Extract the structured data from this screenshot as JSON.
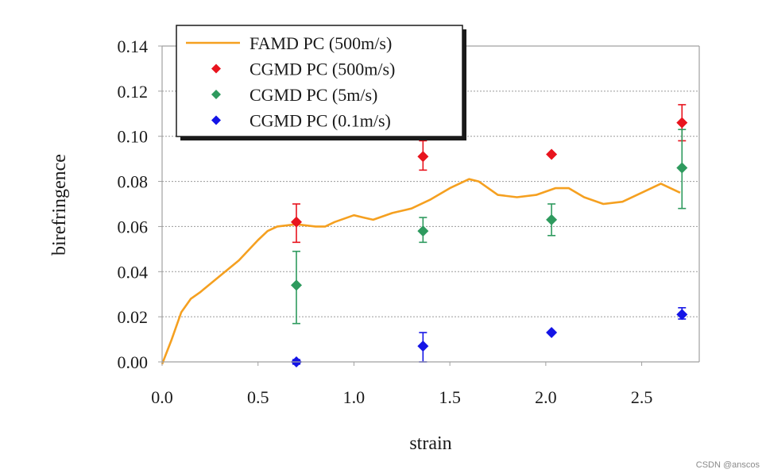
{
  "chart_data": {
    "type": "scatter",
    "title": "",
    "xlabel": "strain",
    "ylabel": "birefringence",
    "xlim": [
      0.0,
      2.8
    ],
    "ylim": [
      0.0,
      0.14
    ],
    "xticks": [
      "0.0",
      "0.5",
      "1.0",
      "1.5",
      "2.0",
      "2.5"
    ],
    "yticks": [
      "0.00",
      "0.02",
      "0.04",
      "0.06",
      "0.08",
      "0.10",
      "0.12",
      "0.14"
    ],
    "grid": "horizontal dotted",
    "legend_position": "top-left",
    "series": [
      {
        "name": "FAMD PC (500m/s)",
        "kind": "line",
        "color": "#f5a020",
        "x": [
          0.0,
          0.05,
          0.1,
          0.15,
          0.2,
          0.3,
          0.4,
          0.5,
          0.55,
          0.6,
          0.7,
          0.8,
          0.85,
          0.9,
          1.0,
          1.05,
          1.1,
          1.2,
          1.3,
          1.4,
          1.5,
          1.6,
          1.65,
          1.75,
          1.85,
          1.95,
          2.05,
          2.12,
          2.2,
          2.3,
          2.4,
          2.5,
          2.6,
          2.7
        ],
        "y": [
          -0.001,
          0.01,
          0.022,
          0.028,
          0.031,
          0.038,
          0.045,
          0.054,
          0.058,
          0.06,
          0.061,
          0.06,
          0.06,
          0.062,
          0.065,
          0.064,
          0.063,
          0.066,
          0.068,
          0.072,
          0.077,
          0.081,
          0.08,
          0.074,
          0.073,
          0.074,
          0.077,
          0.077,
          0.073,
          0.07,
          0.071,
          0.075,
          0.079,
          0.075
        ]
      },
      {
        "name": "CGMD PC (500m/s)",
        "kind": "marker",
        "color": "#e8141e",
        "points": [
          {
            "x": 0.7,
            "y": 0.062,
            "err_low": 0.053,
            "err_high": 0.07
          },
          {
            "x": 1.36,
            "y": 0.091,
            "err_low": 0.085,
            "err_high": 0.098
          },
          {
            "x": 2.03,
            "y": 0.092
          },
          {
            "x": 2.71,
            "y": 0.106,
            "err_low": 0.098,
            "err_high": 0.114
          }
        ]
      },
      {
        "name": "CGMD PC (5m/s)",
        "kind": "marker",
        "color": "#2e9a5e",
        "points": [
          {
            "x": 0.7,
            "y": 0.034,
            "err_low": 0.017,
            "err_high": 0.049
          },
          {
            "x": 1.36,
            "y": 0.058,
            "err_low": 0.053,
            "err_high": 0.064
          },
          {
            "x": 2.03,
            "y": 0.063,
            "err_low": 0.056,
            "err_high": 0.07
          },
          {
            "x": 2.71,
            "y": 0.086,
            "err_low": 0.068,
            "err_high": 0.103
          }
        ]
      },
      {
        "name": "CGMD PC (0.1m/s)",
        "kind": "marker",
        "color": "#1414e6",
        "points": [
          {
            "x": 0.7,
            "y": 0.0,
            "err_low": -0.001,
            "err_high": 0.001
          },
          {
            "x": 1.36,
            "y": 0.007,
            "err_low": 0.0,
            "err_high": 0.013
          },
          {
            "x": 2.03,
            "y": 0.013
          },
          {
            "x": 2.71,
            "y": 0.021,
            "err_low": 0.019,
            "err_high": 0.024
          }
        ]
      }
    ]
  },
  "watermark": "CSDN @anscos"
}
